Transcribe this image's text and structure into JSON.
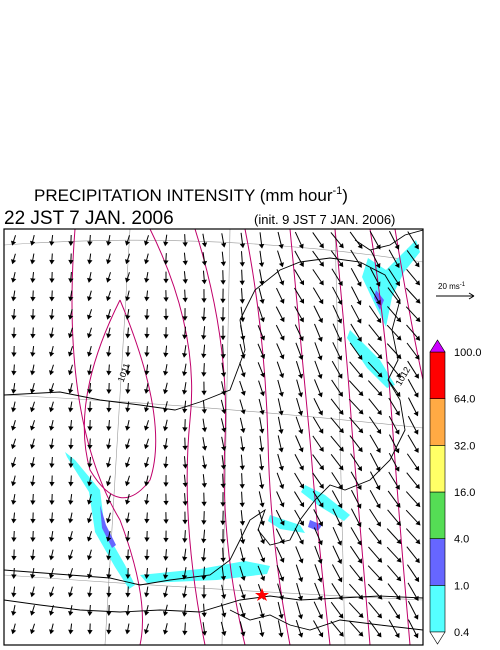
{
  "header": {
    "title": "PRECIPITATION INTENSITY (mm hour",
    "title_sup": "-1",
    "title_end": ")",
    "valid_time": "22 JST 7 JAN. 2006",
    "init_time": "(init. 9 JST 7 JAN. 2006)"
  },
  "wind_scale": {
    "label": "20 ms",
    "label_sup": "-1"
  },
  "map": {
    "contour_labels": [
      "1011",
      "1012"
    ]
  },
  "colorbar": {
    "levels": [
      0.4,
      {
        "value": 1,
        "label": "1.0"
      },
      {
        "value": 4,
        "label": "4.0"
      },
      {
        "value": 16,
        "label": "16.0"
      },
      {
        "value": 32,
        "label": "32.0"
      },
      {
        "value": 64,
        "label": "64.0"
      },
      {
        "value": 100,
        "label": "100.0"
      }
    ],
    "colors": [
      "#55ffff",
      "#6666ff",
      "#55dd55",
      "#ffff66",
      "#ffaa44",
      "#ff0000"
    ],
    "over_color": "#cc00ff",
    "under_color": "#ffffff"
  }
}
